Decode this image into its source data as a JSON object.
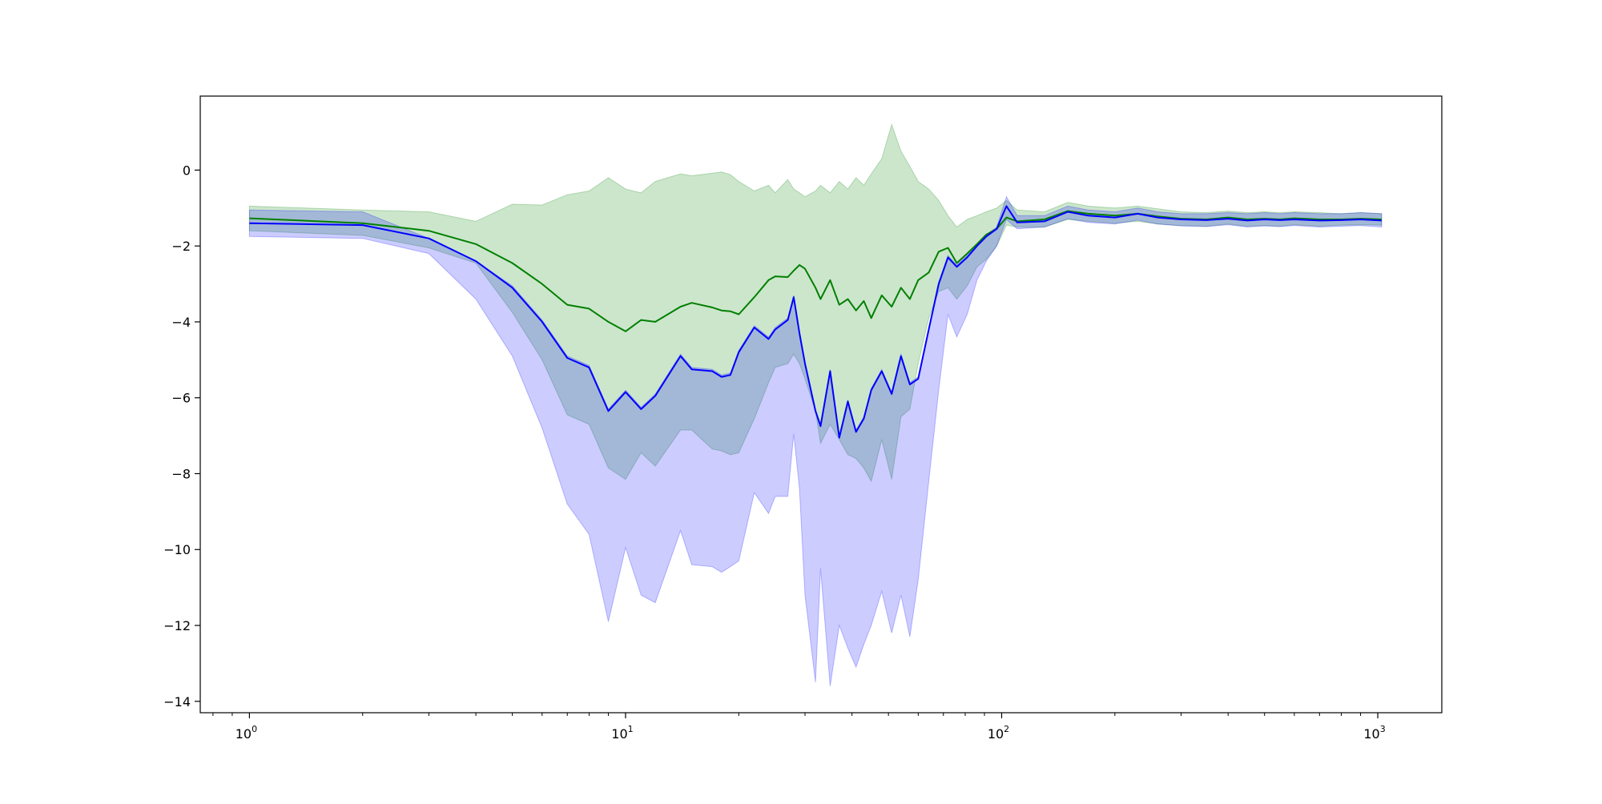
{
  "chart_data": {
    "type": "line",
    "title": "",
    "xlabel": "",
    "ylabel": "",
    "xscale": "log",
    "xlim": [
      0.74,
      1480
    ],
    "ylim": [
      -14.3,
      1.95
    ],
    "grid": false,
    "legend": "none",
    "x_ticks": [
      {
        "value": 1,
        "base": "10",
        "exp": "0"
      },
      {
        "value": 10,
        "base": "10",
        "exp": "1"
      },
      {
        "value": 100,
        "base": "10",
        "exp": "2"
      },
      {
        "value": 1000,
        "base": "10",
        "exp": "3"
      }
    ],
    "y_ticks": [
      {
        "value": 0,
        "label": "0"
      },
      {
        "value": -2,
        "label": "−2"
      },
      {
        "value": -4,
        "label": "−4"
      },
      {
        "value": -6,
        "label": "−6"
      },
      {
        "value": -8,
        "label": "−8"
      },
      {
        "value": -10,
        "label": "−10"
      },
      {
        "value": -12,
        "label": "−12"
      },
      {
        "value": -14,
        "label": "−14"
      }
    ],
    "series": [
      {
        "color": "#008000",
        "band_color": "#008000",
        "band_opacity": 0.2,
        "x": [
          1,
          2,
          3,
          4,
          5,
          6,
          7,
          8,
          9,
          10,
          11,
          12,
          14,
          15,
          17,
          18,
          19,
          20,
          22,
          24,
          25,
          27,
          28,
          29,
          30,
          32,
          33,
          35,
          37,
          39,
          41,
          43,
          45,
          48,
          51,
          54,
          57,
          60,
          64,
          68,
          72,
          76,
          81,
          86,
          91,
          97,
          103,
          110,
          130,
          150,
          170,
          200,
          230,
          260,
          300,
          350,
          400,
          450,
          500,
          550,
          600,
          700,
          800,
          900,
          1024
        ],
        "mean": [
          -1.27,
          -1.4,
          -1.6,
          -1.95,
          -2.45,
          -3.0,
          -3.55,
          -3.65,
          -4.0,
          -4.25,
          -3.95,
          -4.0,
          -3.6,
          -3.5,
          -3.62,
          -3.7,
          -3.72,
          -3.8,
          -3.35,
          -2.9,
          -2.8,
          -2.82,
          -2.65,
          -2.5,
          -2.6,
          -3.1,
          -3.4,
          -2.9,
          -3.55,
          -3.4,
          -3.7,
          -3.45,
          -3.9,
          -3.3,
          -3.6,
          -3.1,
          -3.4,
          -2.9,
          -2.7,
          -2.15,
          -2.05,
          -2.45,
          -2.2,
          -1.95,
          -1.7,
          -1.55,
          -1.25,
          -1.35,
          -1.3,
          -1.08,
          -1.15,
          -1.2,
          -1.15,
          -1.22,
          -1.28,
          -1.3,
          -1.25,
          -1.3,
          -1.28,
          -1.3,
          -1.27,
          -1.3,
          -1.3,
          -1.28,
          -1.3
        ],
        "upper": [
          -0.95,
          -1.05,
          -1.1,
          -1.35,
          -0.9,
          -0.92,
          -0.65,
          -0.55,
          -0.2,
          -0.5,
          -0.6,
          -0.3,
          -0.1,
          -0.15,
          -0.08,
          -0.05,
          -0.12,
          -0.3,
          -0.55,
          -0.4,
          -0.6,
          -0.25,
          -0.5,
          -0.6,
          -0.7,
          -0.55,
          -0.4,
          -0.6,
          -0.3,
          -0.5,
          -0.2,
          -0.4,
          -0.1,
          0.3,
          1.2,
          0.5,
          0.1,
          -0.3,
          -0.5,
          -0.8,
          -1.2,
          -1.5,
          -1.3,
          -1.2,
          -1.1,
          -1.0,
          -0.8,
          -1.05,
          -1.1,
          -0.85,
          -0.95,
          -1.0,
          -0.95,
          -1.02,
          -1.1,
          -1.12,
          -1.08,
          -1.12,
          -1.1,
          -1.12,
          -1.1,
          -1.12,
          -1.15,
          -1.12,
          -1.15
        ],
        "lower": [
          -1.6,
          -1.72,
          -2.05,
          -2.45,
          -3.75,
          -5.0,
          -6.45,
          -6.7,
          -7.85,
          -8.15,
          -7.45,
          -7.8,
          -6.85,
          -6.85,
          -7.35,
          -7.4,
          -7.5,
          -7.45,
          -6.55,
          -5.6,
          -5.2,
          -5.1,
          -4.85,
          -5.1,
          -5.5,
          -6.35,
          -7.2,
          -6.7,
          -7.1,
          -7.5,
          -7.6,
          -7.85,
          -8.2,
          -7.1,
          -8.15,
          -6.5,
          -6.3,
          -5.1,
          -3.9,
          -3.2,
          -3.1,
          -3.4,
          -3.05,
          -2.55,
          -2.35,
          -2.0,
          -1.45,
          -1.5,
          -1.5,
          -1.3,
          -1.35,
          -1.4,
          -1.35,
          -1.42,
          -1.46,
          -1.48,
          -1.42,
          -1.48,
          -1.46,
          -1.48,
          -1.44,
          -1.48,
          -1.45,
          -1.44,
          -1.45
        ]
      },
      {
        "color": "#0000ff",
        "band_color": "#0000ff",
        "band_opacity": 0.2,
        "x": [
          1,
          2,
          3,
          4,
          5,
          6,
          7,
          8,
          9,
          10,
          11,
          12,
          14,
          15,
          17,
          18,
          19,
          20,
          22,
          24,
          25,
          27,
          28,
          29,
          30,
          32,
          33,
          35,
          37,
          39,
          41,
          43,
          45,
          48,
          51,
          54,
          57,
          60,
          64,
          68,
          72,
          76,
          81,
          86,
          91,
          97,
          103,
          110,
          130,
          150,
          170,
          200,
          230,
          260,
          300,
          350,
          400,
          450,
          500,
          550,
          600,
          700,
          800,
          900,
          1024
        ],
        "mean": [
          -1.4,
          -1.45,
          -1.8,
          -2.4,
          -3.1,
          -4.0,
          -4.95,
          -5.2,
          -6.35,
          -5.85,
          -6.3,
          -5.95,
          -4.9,
          -5.25,
          -5.3,
          -5.45,
          -5.4,
          -4.8,
          -4.15,
          -4.45,
          -4.2,
          -3.95,
          -3.35,
          -4.3,
          -5.1,
          -6.35,
          -6.75,
          -5.3,
          -7.05,
          -6.1,
          -6.9,
          -6.55,
          -5.8,
          -5.3,
          -5.9,
          -4.9,
          -5.65,
          -5.5,
          -4.2,
          -3.0,
          -2.3,
          -2.55,
          -2.3,
          -2.0,
          -1.75,
          -1.55,
          -0.95,
          -1.38,
          -1.35,
          -1.1,
          -1.2,
          -1.25,
          -1.15,
          -1.25,
          -1.3,
          -1.32,
          -1.28,
          -1.33,
          -1.3,
          -1.32,
          -1.3,
          -1.33,
          -1.32,
          -1.3,
          -1.33
        ],
        "upper": [
          -1.05,
          -1.1,
          -1.8,
          -2.4,
          -3.05,
          -3.95,
          -4.9,
          -5.15,
          -6.3,
          -5.8,
          -6.25,
          -5.9,
          -4.85,
          -5.2,
          -5.25,
          -5.4,
          -5.35,
          -4.75,
          -4.1,
          -4.4,
          -4.15,
          -3.9,
          -3.3,
          -4.25,
          -5.05,
          -6.3,
          -6.7,
          -5.25,
          -7.0,
          -6.05,
          -6.85,
          -6.5,
          -5.75,
          -5.25,
          -5.85,
          -4.85,
          -5.6,
          -5.45,
          -4.15,
          -2.95,
          -2.25,
          -2.5,
          -2.25,
          -1.95,
          -1.7,
          -1.5,
          -0.7,
          -1.2,
          -1.2,
          -0.95,
          -1.05,
          -1.1,
          -1.0,
          -1.1,
          -1.15,
          -1.15,
          -1.12,
          -1.15,
          -1.12,
          -1.15,
          -1.12,
          -1.15,
          -1.15,
          -1.12,
          -1.15
        ],
        "lower": [
          -1.75,
          -1.8,
          -2.2,
          -3.4,
          -4.9,
          -6.8,
          -8.8,
          -9.6,
          -11.9,
          -9.95,
          -11.2,
          -11.4,
          -9.5,
          -10.4,
          -10.45,
          -10.6,
          -10.45,
          -10.3,
          -8.5,
          -9.05,
          -8.6,
          -8.6,
          -6.95,
          -8.4,
          -11.2,
          -13.5,
          -10.5,
          -13.6,
          -12.0,
          -12.6,
          -13.1,
          -12.5,
          -12.0,
          -11.1,
          -12.2,
          -11.2,
          -12.3,
          -10.8,
          -8.2,
          -5.8,
          -3.8,
          -4.4,
          -3.8,
          -2.9,
          -2.4,
          -2.0,
          -1.3,
          -1.55,
          -1.5,
          -1.28,
          -1.38,
          -1.42,
          -1.32,
          -1.42,
          -1.47,
          -1.49,
          -1.44,
          -1.5,
          -1.47,
          -1.49,
          -1.46,
          -1.5,
          -1.48,
          -1.46,
          -1.5
        ]
      }
    ]
  }
}
